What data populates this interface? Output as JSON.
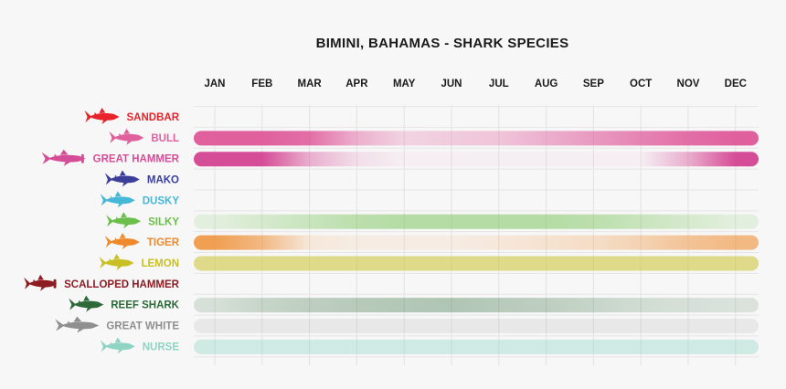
{
  "chart_data": {
    "type": "heatmap",
    "title": "BIMINI, BAHAMAS - SHARK SPECIES",
    "xlabel": "",
    "ylabel": "",
    "grid": true,
    "categories": [
      "JAN",
      "FEB",
      "MAR",
      "APR",
      "MAY",
      "JUN",
      "JUL",
      "AUG",
      "SEP",
      "OCT",
      "NOV",
      "DEC"
    ],
    "series": [
      {
        "name": "SANDBAR",
        "color": "#e8232b",
        "icon": "sandbar-shark-icon",
        "values": [
          0,
          0,
          0,
          0,
          0,
          0,
          0,
          0,
          0,
          0,
          0,
          0
        ]
      },
      {
        "name": "BULL",
        "color": "#e0609e",
        "icon": "bull-shark-icon",
        "values": [
          1,
          1,
          0.9,
          0.45,
          0.2,
          0.25,
          0.3,
          0.45,
          0.6,
          0.75,
          0.9,
          1
        ]
      },
      {
        "name": "GREAT HAMMER",
        "color": "#d64d97",
        "icon": "great-hammer-shark-icon",
        "values": [
          1,
          1,
          0.4,
          0.1,
          0,
          0,
          0,
          0,
          0,
          0,
          0.4,
          1
        ]
      },
      {
        "name": "MAKO",
        "color": "#3b3f9a",
        "icon": "mako-shark-icon",
        "values": [
          0,
          0,
          0,
          0,
          0,
          0,
          0,
          0,
          0,
          0,
          0,
          0
        ]
      },
      {
        "name": "DUSKY",
        "color": "#45b8d8",
        "icon": "dusky-shark-icon",
        "values": [
          0,
          0,
          0,
          0,
          0,
          0,
          0,
          0,
          0,
          0,
          0,
          0
        ]
      },
      {
        "name": "SILKY",
        "color": "#6cbf4a",
        "icon": "silky-shark-icon",
        "values": [
          0.1,
          0.2,
          0.3,
          0.4,
          0.45,
          0.45,
          0.45,
          0.45,
          0.4,
          0.3,
          0.2,
          0.1
        ]
      },
      {
        "name": "TIGER",
        "color": "#ee8a2c",
        "icon": "tiger-shark-icon",
        "values": [
          0.8,
          0.55,
          0.1,
          0.05,
          0.05,
          0.05,
          0.1,
          0.15,
          0.2,
          0.3,
          0.45,
          0.55
        ]
      },
      {
        "name": "LEMON",
        "color": "#c9c025",
        "icon": "lemon-shark-icon",
        "values": [
          0.5,
          0.5,
          0.5,
          0.5,
          0.5,
          0.5,
          0.5,
          0.5,
          0.5,
          0.5,
          0.5,
          0.5
        ]
      },
      {
        "name": "SCALLOPED HAMMER",
        "color": "#8c1c22",
        "icon": "scalloped-hammer-shark-icon",
        "values": [
          0,
          0,
          0,
          0,
          0,
          0,
          0,
          0,
          0,
          0,
          0,
          0
        ]
      },
      {
        "name": "REEF SHARK",
        "color": "#2d6a38",
        "icon": "reef-shark-icon",
        "values": [
          0.12,
          0.2,
          0.25,
          0.28,
          0.3,
          0.32,
          0.28,
          0.25,
          0.2,
          0.15,
          0.12,
          0.1
        ]
      },
      {
        "name": "GREAT WHITE",
        "color": "#8f8f8f",
        "icon": "great-white-shark-icon",
        "values": [
          0.1,
          0.1,
          0.1,
          0.1,
          0.1,
          0.1,
          0.1,
          0.1,
          0.1,
          0.1,
          0.1,
          0.1
        ]
      },
      {
        "name": "NURSE",
        "color": "#8fd3c2",
        "icon": "nurse-shark-icon",
        "values": [
          0.35,
          0.35,
          0.35,
          0.35,
          0.35,
          0.35,
          0.35,
          0.35,
          0.35,
          0.35,
          0.35,
          0.35
        ]
      }
    ]
  }
}
